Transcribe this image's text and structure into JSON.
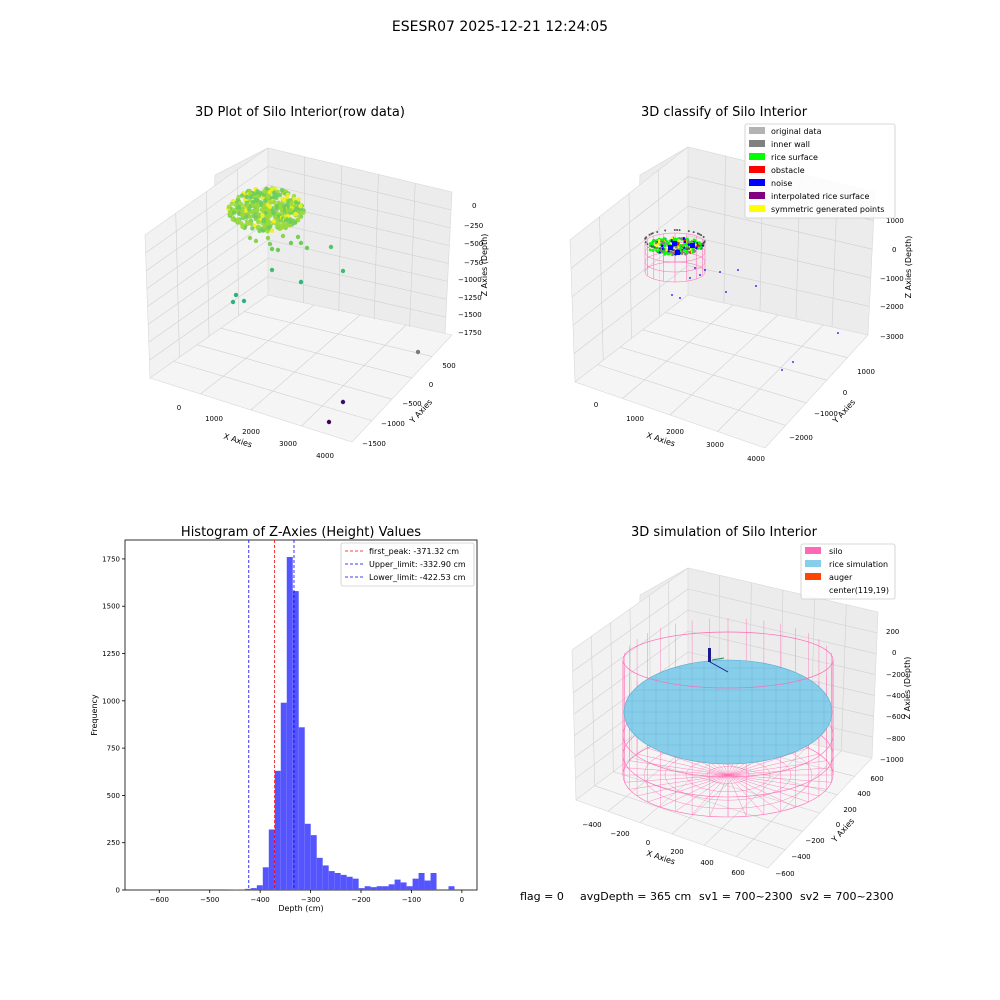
{
  "figure": {
    "suptitle": "ESESR07 2025-12-21 12:24:05",
    "footer": {
      "flag": "flag = 0",
      "avg_depth": "avgDepth = 365 cm",
      "sv1": "sv1 = 700~2300",
      "sv2": "sv2 = 700~2300"
    }
  },
  "chart_data": [
    {
      "id": "raw",
      "type": "scatter",
      "title": "3D Plot of Silo Interior(row data)",
      "xlabel": "X Axies",
      "ylabel": "Y Axies",
      "zlabel": "Z Axies (Depth)",
      "x_ticks": [
        "0",
        "1000",
        "2000",
        "3000",
        "4000"
      ],
      "y_ticks": [
        "500",
        "0",
        "−500",
        "−1000",
        "−1500"
      ],
      "z_ticks": [
        "0",
        "−250",
        "−500",
        "−750",
        "−1000",
        "−1250",
        "−1500",
        "−1750"
      ],
      "colormap": "viridis"
    },
    {
      "id": "classify",
      "type": "scatter",
      "title": "3D classify of Silo Interior",
      "xlabel": "X Axies",
      "ylabel": "Y Axies",
      "zlabel": "Z Axies (Depth)",
      "x_ticks": [
        "0",
        "1000",
        "2000",
        "3000",
        "4000"
      ],
      "y_ticks": [
        "1000",
        "0",
        "−1000",
        "−2000"
      ],
      "z_ticks": [
        "1000",
        "0",
        "−1000",
        "−2000",
        "−3000"
      ],
      "legend_position": "top-right",
      "legend": [
        {
          "label": "original data",
          "color": "#b3b3b3"
        },
        {
          "label": "inner wall",
          "color": "#808080"
        },
        {
          "label": "rice surface",
          "color": "#00ff00"
        },
        {
          "label": "obstacle",
          "color": "#ff0000"
        },
        {
          "label": "noise",
          "color": "#0000ff"
        },
        {
          "label": "interpolated rice surface",
          "color": "#800080"
        },
        {
          "label": "symmetric generated points",
          "color": "#ffff00"
        }
      ]
    },
    {
      "id": "hist",
      "type": "bar",
      "title": "Histogram of Z-Axies (Height) Values",
      "xlabel": "Depth (cm)",
      "ylabel": "Frequency",
      "xlim": [
        -668,
        30
      ],
      "ylim": [
        0,
        1850
      ],
      "x_ticks": [
        -600,
        -500,
        -400,
        -300,
        -200,
        -100,
        0
      ],
      "x_tick_labels": [
        "−600",
        "−500",
        "−400",
        "−300",
        "−200",
        "−100",
        "0"
      ],
      "y_ticks": [
        0,
        250,
        500,
        750,
        1000,
        1250,
        1500,
        1750
      ],
      "bar_color": "#5555ff",
      "bin_start": -668,
      "bin_width": 11.88,
      "values": [
        0,
        0,
        0,
        0,
        0,
        0,
        0,
        0,
        0,
        0,
        0,
        0,
        0,
        0,
        0,
        0,
        0,
        1,
        2,
        3,
        6,
        10,
        25,
        120,
        320,
        630,
        990,
        1760,
        1580,
        860,
        350,
        290,
        170,
        130,
        100,
        90,
        80,
        70,
        60,
        10,
        20,
        15,
        20,
        20,
        30,
        55,
        40,
        20,
        60,
        90,
        50,
        90,
        0,
        0,
        20,
        0
      ],
      "lines": [
        {
          "label": "first_peak: -371.32 cm",
          "x": -371.32,
          "color": "#ff0000"
        },
        {
          "label": "Upper_limit: -332.90 cm",
          "x": -332.9,
          "color": "#0000ff"
        },
        {
          "label": "Lower_limit: -422.53 cm",
          "x": -422.53,
          "color": "#0000ff"
        }
      ],
      "legend_position": "top-right"
    },
    {
      "id": "sim",
      "type": "surface",
      "title": "3D simulation of Silo Interior",
      "xlabel": "X Axies",
      "ylabel": "Y Axies",
      "zlabel": "Z Axies (Depth)",
      "x_ticks": [
        "−400",
        "−200",
        "0",
        "200",
        "400",
        "600"
      ],
      "y_ticks": [
        "600",
        "400",
        "200",
        "0",
        "−200",
        "−400",
        "−600"
      ],
      "z_ticks": [
        "200",
        "0",
        "−200",
        "−400",
        "−600",
        "−800",
        "−1000"
      ],
      "legend_position": "top-right",
      "legend": [
        {
          "label": "silo",
          "color": "#ff69b4"
        },
        {
          "label": "rice simulation",
          "color": "#87ceeb"
        },
        {
          "label": "auger",
          "color": "#ff4500"
        },
        {
          "label": "center(119,19)",
          "color": "none"
        }
      ]
    }
  ]
}
